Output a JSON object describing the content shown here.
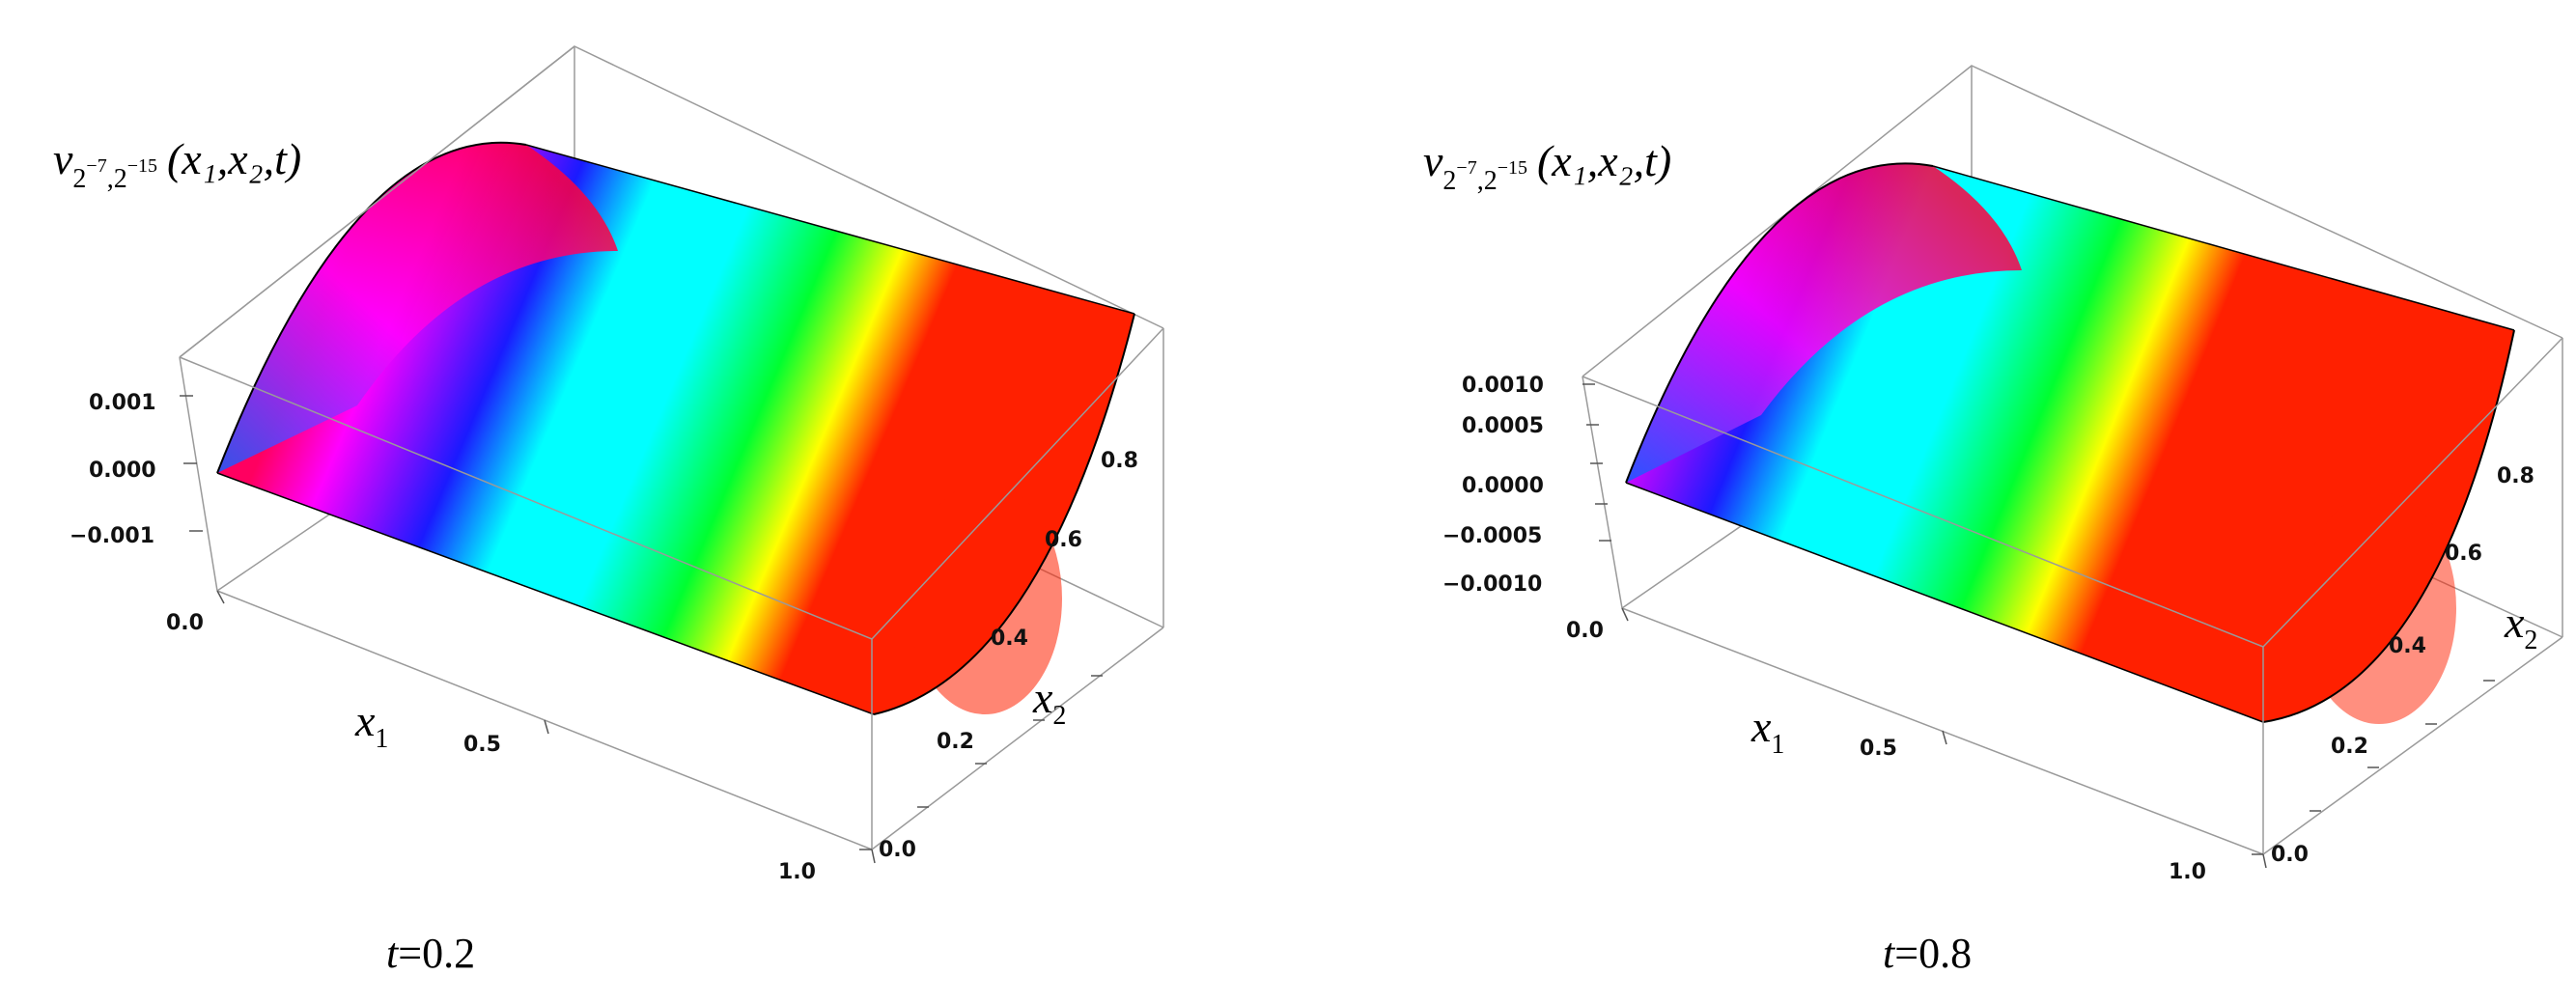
{
  "chart_data": [
    {
      "type": "surface3d",
      "caption": {
        "var": "t",
        "eq": "=",
        "value": "0.2"
      },
      "zlabel": {
        "var": "v",
        "sub1": "2",
        "sup1": "−7",
        "comma": ",",
        "sub2": "2",
        "sup2": "−15",
        "args": "(x₁,x₂,t)"
      },
      "xlabel": {
        "var": "x",
        "sub": "1"
      },
      "ylabel": {
        "var": "x",
        "sub": "2"
      },
      "x_ticks": [
        "0.0",
        "0.5",
        "1.0"
      ],
      "y_ticks": [
        "0.0",
        "0.2",
        "0.4",
        "0.6",
        "0.8"
      ],
      "z_ticks": [
        "0.001",
        "0.000",
        "−0.001"
      ],
      "x_range": [
        0,
        1
      ],
      "y_range": [
        0,
        1
      ],
      "z_range": [
        -0.0015,
        0.0015
      ],
      "colormap": "rainbow hue (red at maximum, magenta, blue, cyan near zero, green, yellow, red)"
    },
    {
      "type": "surface3d",
      "caption": {
        "var": "t",
        "eq": "=",
        "value": "0.8"
      },
      "zlabel": {
        "var": "v",
        "sub1": "2",
        "sup1": "−7",
        "comma": ",",
        "sub2": "2",
        "sup2": "−15",
        "args": "(x₁,x₂,t)"
      },
      "xlabel": {
        "var": "x",
        "sub": "1"
      },
      "ylabel": {
        "var": "x",
        "sub": "2"
      },
      "x_ticks": [
        "0.0",
        "0.5",
        "1.0"
      ],
      "y_ticks": [
        "0.0",
        "0.2",
        "0.4",
        "0.6",
        "0.8"
      ],
      "z_ticks": [
        "0.0010",
        "0.0005",
        "0.0000",
        "−0.0005",
        "−0.0010"
      ],
      "x_range": [
        0,
        1
      ],
      "y_range": [
        0,
        1
      ],
      "z_range": [
        -0.0012,
        0.0012
      ],
      "colormap": "rainbow hue (red at maximum, magenta, blue, cyan near zero, green, yellow, red)"
    }
  ]
}
